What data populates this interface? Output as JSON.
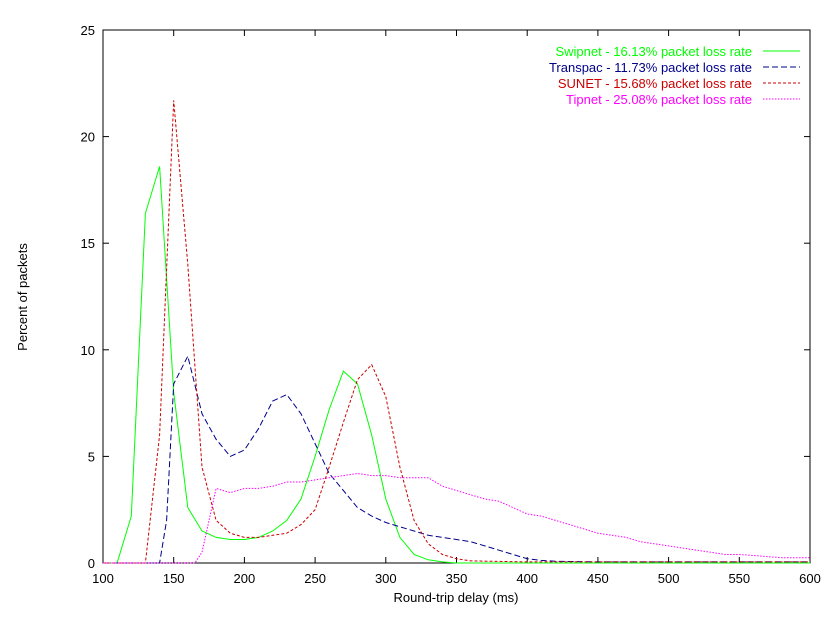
{
  "chart_data": {
    "type": "line",
    "title": "",
    "xlabel": "Round-trip delay (ms)",
    "ylabel": "Percent of packets",
    "xlim": [
      100,
      600
    ],
    "ylim": [
      0,
      25
    ],
    "xticks": [
      "100",
      "150",
      "200",
      "250",
      "300",
      "350",
      "400",
      "450",
      "500",
      "550",
      "600"
    ],
    "yticks": [
      "0",
      "5",
      "10",
      "15",
      "20",
      "25"
    ],
    "legend_position": "top-right",
    "grid": false,
    "series": [
      {
        "name": "Swipnet - 16.13% packet loss rate",
        "color": "#00ff00",
        "dash": "solid",
        "points": [
          [
            100,
            0
          ],
          [
            110,
            0
          ],
          [
            120,
            2.2
          ],
          [
            130,
            16.4
          ],
          [
            140,
            18.6
          ],
          [
            150,
            8.0
          ],
          [
            160,
            2.6
          ],
          [
            170,
            1.5
          ],
          [
            180,
            1.2
          ],
          [
            190,
            1.1
          ],
          [
            200,
            1.1
          ],
          [
            210,
            1.2
          ],
          [
            220,
            1.5
          ],
          [
            230,
            2.0
          ],
          [
            240,
            3.0
          ],
          [
            250,
            5.0
          ],
          [
            260,
            7.2
          ],
          [
            270,
            9.0
          ],
          [
            280,
            8.4
          ],
          [
            290,
            6.0
          ],
          [
            300,
            3.0
          ],
          [
            310,
            1.2
          ],
          [
            320,
            0.4
          ],
          [
            330,
            0.15
          ],
          [
            340,
            0.05
          ],
          [
            350,
            0
          ],
          [
            400,
            0
          ],
          [
            450,
            0
          ],
          [
            500,
            0
          ],
          [
            550,
            0
          ],
          [
            600,
            0
          ]
        ]
      },
      {
        "name": "Transpac - 11.73% packet loss rate",
        "color": "#00008b",
        "dash": "dashed",
        "points": [
          [
            100,
            0
          ],
          [
            140,
            0
          ],
          [
            145,
            2.0
          ],
          [
            150,
            8.4
          ],
          [
            160,
            9.7
          ],
          [
            170,
            7.0
          ],
          [
            180,
            5.8
          ],
          [
            190,
            5.0
          ],
          [
            200,
            5.3
          ],
          [
            210,
            6.3
          ],
          [
            220,
            7.6
          ],
          [
            230,
            7.9
          ],
          [
            240,
            7.0
          ],
          [
            250,
            5.6
          ],
          [
            260,
            4.2
          ],
          [
            270,
            3.4
          ],
          [
            280,
            2.6
          ],
          [
            290,
            2.2
          ],
          [
            300,
            1.9
          ],
          [
            310,
            1.7
          ],
          [
            320,
            1.5
          ],
          [
            330,
            1.3
          ],
          [
            340,
            1.2
          ],
          [
            350,
            1.1
          ],
          [
            360,
            1.0
          ],
          [
            370,
            0.8
          ],
          [
            380,
            0.6
          ],
          [
            390,
            0.4
          ],
          [
            400,
            0.2
          ],
          [
            410,
            0.12
          ],
          [
            420,
            0.08
          ],
          [
            450,
            0.05
          ],
          [
            500,
            0.05
          ],
          [
            550,
            0.05
          ],
          [
            570,
            0.05
          ],
          [
            580,
            0.05
          ],
          [
            600,
            0.05
          ]
        ]
      },
      {
        "name": "SUNET - 15.68% packet loss rate",
        "color": "#cc0000",
        "dash": "shortdash",
        "points": [
          [
            100,
            0
          ],
          [
            130,
            0
          ],
          [
            140,
            6.0
          ],
          [
            150,
            21.7
          ],
          [
            160,
            14.0
          ],
          [
            170,
            4.5
          ],
          [
            180,
            2.0
          ],
          [
            190,
            1.4
          ],
          [
            200,
            1.2
          ],
          [
            210,
            1.2
          ],
          [
            220,
            1.3
          ],
          [
            230,
            1.4
          ],
          [
            240,
            1.8
          ],
          [
            250,
            2.5
          ],
          [
            260,
            4.5
          ],
          [
            270,
            6.6
          ],
          [
            280,
            8.6
          ],
          [
            290,
            9.3
          ],
          [
            300,
            7.8
          ],
          [
            310,
            4.5
          ],
          [
            320,
            2.0
          ],
          [
            330,
            0.9
          ],
          [
            340,
            0.4
          ],
          [
            350,
            0.2
          ],
          [
            360,
            0.1
          ],
          [
            400,
            0.05
          ],
          [
            450,
            0.05
          ],
          [
            500,
            0.05
          ],
          [
            550,
            0.05
          ],
          [
            600,
            0.05
          ]
        ]
      },
      {
        "name": "Tipnet - 25.08% packet loss rate",
        "color": "#ff00ff",
        "dash": "dotted",
        "points": [
          [
            100,
            0
          ],
          [
            165,
            0
          ],
          [
            170,
            0.5
          ],
          [
            180,
            3.5
          ],
          [
            190,
            3.3
          ],
          [
            200,
            3.5
          ],
          [
            210,
            3.5
          ],
          [
            220,
            3.6
          ],
          [
            230,
            3.8
          ],
          [
            240,
            3.8
          ],
          [
            250,
            3.9
          ],
          [
            260,
            4.0
          ],
          [
            270,
            4.1
          ],
          [
            280,
            4.2
          ],
          [
            290,
            4.1
          ],
          [
            300,
            4.1
          ],
          [
            310,
            4.0
          ],
          [
            320,
            4.0
          ],
          [
            330,
            4.0
          ],
          [
            340,
            3.6
          ],
          [
            350,
            3.4
          ],
          [
            360,
            3.2
          ],
          [
            370,
            3.0
          ],
          [
            380,
            2.9
          ],
          [
            390,
            2.6
          ],
          [
            400,
            2.3
          ],
          [
            410,
            2.2
          ],
          [
            420,
            2.0
          ],
          [
            430,
            1.8
          ],
          [
            440,
            1.6
          ],
          [
            450,
            1.4
          ],
          [
            460,
            1.3
          ],
          [
            470,
            1.2
          ],
          [
            480,
            1.0
          ],
          [
            490,
            0.9
          ],
          [
            500,
            0.8
          ],
          [
            510,
            0.7
          ],
          [
            520,
            0.6
          ],
          [
            530,
            0.5
          ],
          [
            540,
            0.4
          ],
          [
            550,
            0.4
          ],
          [
            560,
            0.35
          ],
          [
            570,
            0.3
          ],
          [
            580,
            0.25
          ],
          [
            590,
            0.25
          ],
          [
            600,
            0.25
          ]
        ]
      }
    ]
  }
}
